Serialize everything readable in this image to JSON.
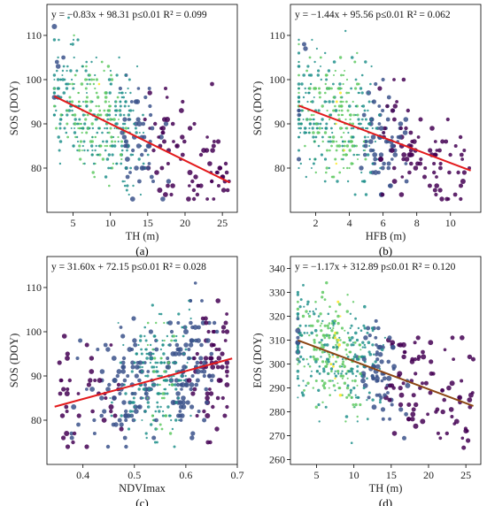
{
  "figure": {
    "colors": {
      "regression": "#e31a1c",
      "regression_d": "#8b4513",
      "viridis": [
        "#440154",
        "#3b528b",
        "#21918c",
        "#5ec962",
        "#fde725"
      ]
    }
  },
  "chart_data": [
    {
      "type": "scatter",
      "panel_label": "(a)",
      "xlabel": "TH (m)",
      "ylabel": "SOS (DOY)",
      "equation": "y = −0.83x + 98.31  p≤0.01 R² = 0.099",
      "xlim": [
        1.5,
        27
      ],
      "ylim": [
        70,
        117
      ],
      "xticks": [
        5,
        10,
        15,
        20,
        25
      ],
      "yticks": [
        80,
        90,
        100,
        110
      ],
      "regression": {
        "slope": -0.83,
        "intercept": 98.31,
        "x_range": [
          2.5,
          26
        ]
      },
      "cloud": {
        "x_range": [
          2.5,
          26
        ],
        "y_range": [
          73,
          115
        ],
        "center": [
          9,
          90
        ]
      }
    },
    {
      "type": "scatter",
      "panel_label": "(b)",
      "xlabel": "HFB (m)",
      "ylabel": "SOS (DOY)",
      "equation": "y = −1.44x + 95.56  p≤0.01 R² = 0.062",
      "xlim": [
        0.5,
        11.8
      ],
      "ylim": [
        70,
        117
      ],
      "xticks": [
        2,
        4,
        6,
        8,
        10
      ],
      "yticks": [
        80,
        90,
        100,
        110
      ],
      "regression": {
        "slope": -1.44,
        "intercept": 95.56,
        "x_range": [
          1,
          11.2
        ]
      },
      "cloud": {
        "x_range": [
          1,
          11.2
        ],
        "y_range": [
          73,
          115
        ],
        "center": [
          3.5,
          90
        ]
      }
    },
    {
      "type": "scatter",
      "panel_label": "(c)",
      "xlabel": "NDVImax",
      "ylabel": "SOS (DOY)",
      "equation": "y = 31.60x + 72.15  p≤0.01 R² = 0.028",
      "xlim": [
        0.33,
        0.7
      ],
      "ylim": [
        70,
        117
      ],
      "xticks": [
        0.4,
        0.5,
        0.6,
        0.7
      ],
      "yticks": [
        80,
        90,
        100,
        110
      ],
      "regression": {
        "slope": 31.6,
        "intercept": 72.15,
        "x_range": [
          0.345,
          0.69
        ]
      },
      "cloud": {
        "x_range": [
          0.35,
          0.68
        ],
        "y_range": [
          73,
          115
        ],
        "center": [
          0.56,
          90
        ]
      }
    },
    {
      "type": "scatter",
      "panel_label": "(d)",
      "xlabel": "TH (m)",
      "ylabel": "EOS (DOY)",
      "equation": "y = −1.17x + 312.89  p≤0.01 R² = 0.120",
      "xlim": [
        1.5,
        27
      ],
      "ylim": [
        258,
        345
      ],
      "xticks": [
        5,
        10,
        15,
        20,
        25
      ],
      "yticks": [
        260,
        270,
        280,
        290,
        300,
        310,
        320,
        330,
        340
      ],
      "regression": {
        "slope": -1.17,
        "intercept": 312.89,
        "x_range": [
          2.5,
          26
        ]
      },
      "cloud": {
        "x_range": [
          2.5,
          26
        ],
        "y_range": [
          265,
          336
        ],
        "center": [
          8,
          302
        ]
      }
    }
  ]
}
